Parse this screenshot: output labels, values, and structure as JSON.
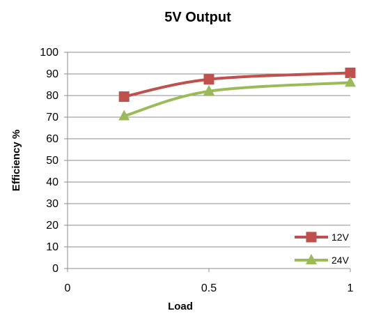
{
  "chart_data": {
    "type": "line",
    "title": "5V Output",
    "xlabel": "Load",
    "ylabel": "Efficiency %",
    "xlim": [
      0,
      1
    ],
    "ylim": [
      0,
      100
    ],
    "xticks": [
      0,
      0.5,
      1
    ],
    "xtick_labels": [
      "0",
      "0.5",
      "1"
    ],
    "yticks": [
      0,
      10,
      20,
      30,
      40,
      50,
      60,
      70,
      80,
      90,
      100
    ],
    "ytick_labels": [
      "0",
      "10",
      "20",
      "30",
      "40",
      "50",
      "60",
      "70",
      "80",
      "90",
      "100"
    ],
    "grid": true,
    "legend_position": "bottom-right",
    "series": [
      {
        "name": "12V",
        "color": "#c0504d",
        "marker": "square",
        "x": [
          0.2,
          0.5,
          1.0
        ],
        "y": [
          79.5,
          87.5,
          90.5
        ]
      },
      {
        "name": "24V",
        "color": "#9bbb59",
        "marker": "triangle",
        "x": [
          0.2,
          0.5,
          1.0
        ],
        "y": [
          70.5,
          82,
          86
        ]
      }
    ]
  }
}
